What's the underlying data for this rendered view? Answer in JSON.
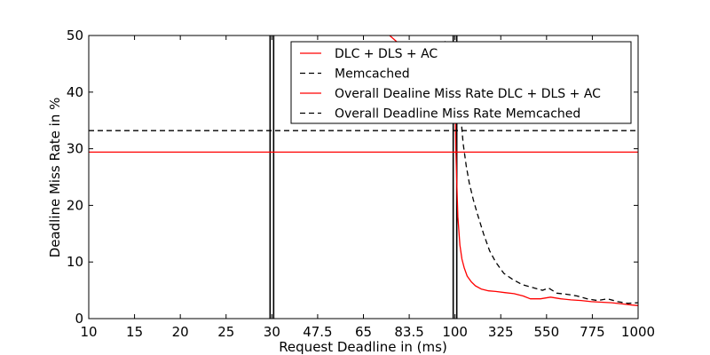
{
  "chart_data": {
    "type": "line",
    "xlabel": "Request Deadline in (ms)",
    "ylabel": "Deadline Miss Rate in %",
    "ylim": [
      0,
      50
    ],
    "yticks": [
      "0",
      "10",
      "20",
      "30",
      "40",
      "50"
    ],
    "x_tick_labels": [
      "10",
      "15",
      "20",
      "25",
      "30",
      "47.5",
      "65",
      "83.5",
      "100",
      "325",
      "550",
      "775",
      "1000"
    ],
    "x_axis_note": "piecewise-linear axis: 10-30 step 5, 30-100 step 17.5, 100-1000 step 225",
    "grid": false,
    "legend_position": "top-right",
    "series": [
      {
        "name": "DLC + DLS + AC",
        "style": "solid",
        "color": "#ff0000",
        "x": [
          75,
          80,
          85,
          90,
          95,
          100,
          104,
          109,
          114,
          124,
          134,
          145,
          160,
          180,
          200,
          230,
          265,
          300,
          345,
          390,
          435,
          470,
          520,
          570,
          620,
          670,
          720,
          770,
          820,
          870,
          920,
          970,
          1000
        ],
        "y": [
          50,
          48,
          46,
          44,
          42,
          40,
          30,
          24,
          18,
          13,
          10.5,
          9,
          7.5,
          6.5,
          5.8,
          5.2,
          4.9,
          4.8,
          4.6,
          4.4,
          4.0,
          3.5,
          3.5,
          3.8,
          3.5,
          3.3,
          3.2,
          3.0,
          2.9,
          2.8,
          2.6,
          2.4,
          2.3
        ]
      },
      {
        "name": "Memcached",
        "style": "dashed",
        "color": "#000000",
        "x": [
          96,
          100,
          105,
          110,
          118,
          128,
          140,
          155,
          170,
          190,
          210,
          240,
          270,
          300,
          340,
          380,
          430,
          480,
          530,
          560,
          600,
          650,
          700,
          750,
          800,
          850,
          900,
          950,
          1000
        ],
        "y": [
          49,
          46,
          44,
          42,
          40,
          36,
          31,
          27,
          24,
          21,
          18.5,
          15,
          12,
          10,
          8,
          7,
          6,
          5.5,
          5,
          5.4,
          4.5,
          4.3,
          4.0,
          3.5,
          3.2,
          3.5,
          3.0,
          2.7,
          2.8
        ]
      },
      {
        "name": "Overall Dealine Miss Rate DLC + DLS + AC",
        "style": "solid",
        "color": "#ff0000",
        "x": [
          10,
          1000
        ],
        "y": [
          29.4,
          29.4
        ]
      },
      {
        "name": "Overall Deadline Miss Rate Memcached",
        "style": "dashed",
        "color": "#000000",
        "x": [
          10,
          1000
        ],
        "y": [
          33.2,
          33.2
        ]
      }
    ],
    "vertical_markers": [
      30,
      100
    ]
  }
}
